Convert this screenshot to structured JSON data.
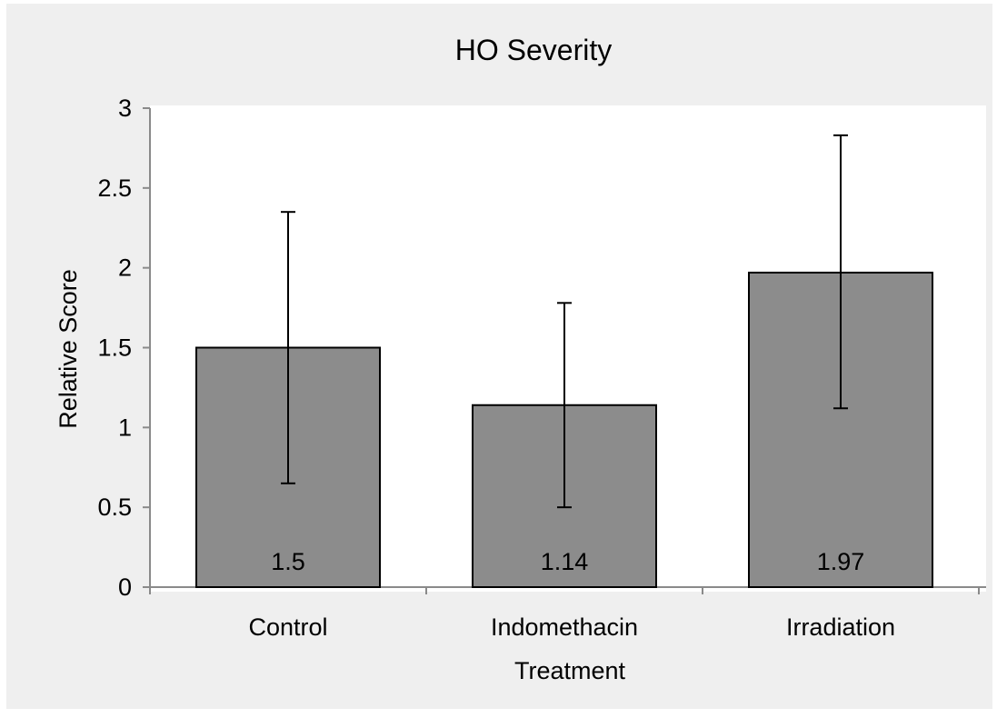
{
  "chart_data": {
    "type": "bar",
    "title": "HO Severity",
    "xlabel": "Treatment",
    "ylabel": "Relative Score",
    "categories": [
      "Control",
      "Indomethacin",
      "Irradiation"
    ],
    "values": [
      1.5,
      1.14,
      1.97
    ],
    "data_labels": [
      "1.5",
      "1.14",
      "1.97"
    ],
    "error_bars": [
      {
        "low": 0.65,
        "high": 2.35
      },
      {
        "low": 0.5,
        "high": 1.78
      },
      {
        "low": 1.12,
        "high": 2.83
      }
    ],
    "ylim": [
      0,
      3
    ],
    "yticks": [
      "0",
      "0.5",
      "1",
      "1.5",
      "2",
      "2.5",
      "3"
    ],
    "grid": false,
    "legend": "none",
    "colors": {
      "bar": "#8c8c8c",
      "bar_edge": "#000000",
      "background": "#efefef",
      "plot_area": "#ffffff"
    }
  }
}
